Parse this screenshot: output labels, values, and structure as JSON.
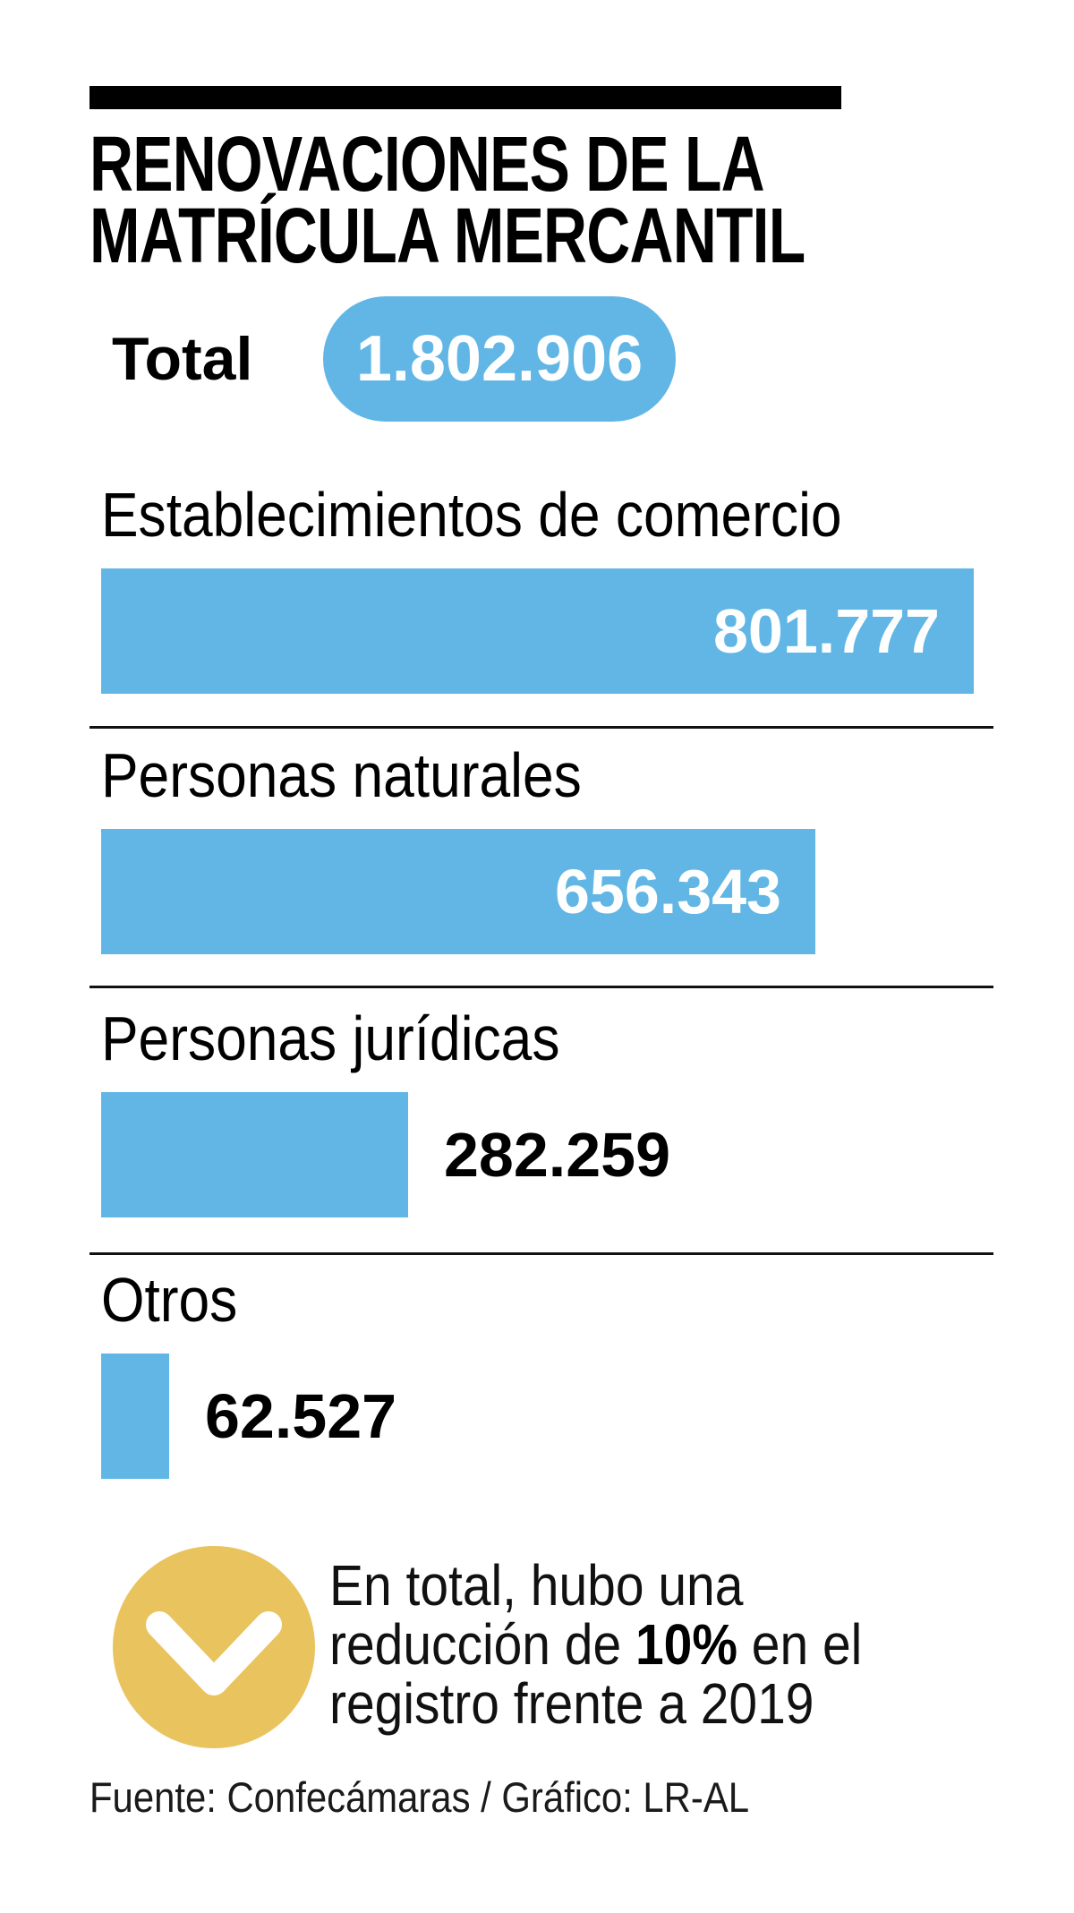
{
  "title": {
    "line1": "RENOVACIONES DE LA",
    "line2": "MATRÍCULA MERCANTIL"
  },
  "total": {
    "label": "Total",
    "value": "1.802.906"
  },
  "chart_data": {
    "type": "bar",
    "orientation": "horizontal",
    "title": "RENOVACIONES DE LA MATRÍCULA MERCANTIL",
    "total": 1802906,
    "categories": [
      "Establecimientos de comercio",
      "Personas naturales",
      "Personas jurídicas",
      "Otros"
    ],
    "values": [
      801777,
      656343,
      282259,
      62527
    ],
    "xlim": [
      0,
      801777
    ],
    "grid": false,
    "legend": false,
    "series": [
      {
        "label": "Establecimientos de comercio",
        "value": 801777,
        "display_value": "801.777",
        "value_position": "inside"
      },
      {
        "label": "Personas naturales",
        "value": 656343,
        "display_value": "656.343",
        "value_position": "inside"
      },
      {
        "label": "Personas jurídicas",
        "value": 282259,
        "display_value": "282.259",
        "value_position": "outside"
      },
      {
        "label": "Otros",
        "value": 62527,
        "display_value": "62.527",
        "value_position": "outside"
      }
    ]
  },
  "annotation": {
    "icon": "chevron-down-icon",
    "line1": "En total, hubo una",
    "line2_prefix": "reducción de ",
    "line2_bold": "10%",
    "line2_suffix": " en el",
    "line3": "registro frente a 2019"
  },
  "source": "Fuente: Confecámaras / Gráfico: LR-AL",
  "colors": {
    "bar_blue": "#61B6E5",
    "accent_gold": "#E9C35D",
    "text_black": "#000000"
  }
}
